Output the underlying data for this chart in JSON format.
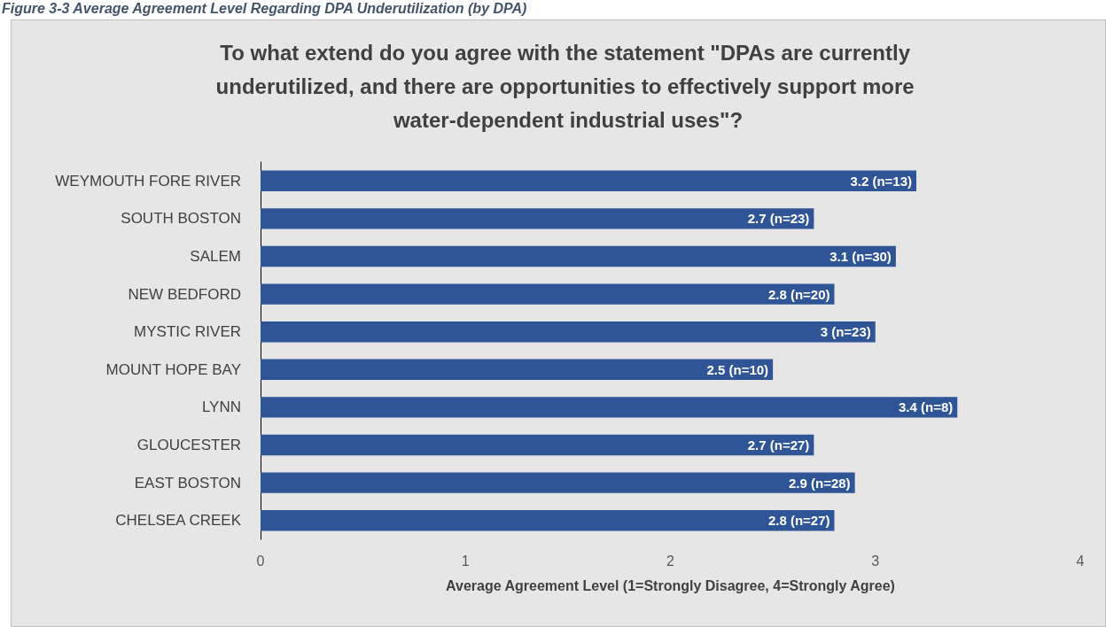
{
  "chart_data": {
    "type": "bar",
    "orientation": "horizontal",
    "title": "To what extend do you agree with the statement \"DPAs are currently underutilized, and there are opportunities to effectively support more water-dependent industrial uses\"?",
    "xlabel": "Average Agreement Level (1=Strongly Disagree, 4=Strongly Agree)",
    "annotations": [
      "Figure 3-3 Average Agreement Level Regarding DPA Underutilization (by DPA)"
    ],
    "categories": [
      "WEYMOUTH FORE RIVER",
      "SOUTH BOSTON",
      "SALEM",
      "NEW BEDFORD",
      "MYSTIC RIVER",
      "MOUNT HOPE BAY",
      "LYNN",
      "GLOUCESTER",
      "EAST BOSTON",
      "CHELSEA CREEK"
    ],
    "values": [
      3.2,
      2.7,
      3.1,
      2.8,
      3,
      2.5,
      3.4,
      2.7,
      2.9,
      2.8
    ],
    "value_labels": [
      "3.2 (n=13)",
      "2.7 (n=23)",
      "3.1 (n=30)",
      "2.8 (n=20)",
      "3 (n=23)",
      "2.5 (n=10)",
      "3.4 (n=8)",
      "2.7 (n=27)",
      "2.9 (n=28)",
      "2.8 (n=27)"
    ],
    "color": "#2f5597",
    "xlim": [
      0,
      4
    ],
    "xticks": [
      0,
      1,
      2,
      3,
      4
    ],
    "grid": false
  }
}
